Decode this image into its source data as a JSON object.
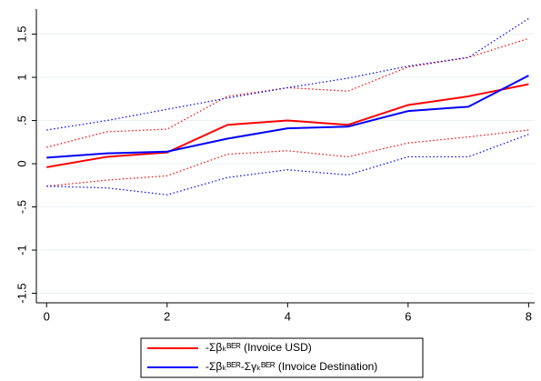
{
  "chart_data": {
    "type": "line",
    "x": [
      0,
      1,
      2,
      3,
      4,
      5,
      6,
      7,
      8
    ],
    "series": [
      {
        "name": "-Σβₖᴮᴱᴿ (Invoice USD)",
        "color": "#ff0000",
        "values": [
          -0.04,
          0.08,
          0.13,
          0.45,
          0.5,
          0.45,
          0.68,
          0.78,
          0.92
        ],
        "upper": [
          0.19,
          0.37,
          0.4,
          0.78,
          0.88,
          0.84,
          1.12,
          1.23,
          1.45
        ],
        "lower": [
          -0.26,
          -0.19,
          -0.14,
          0.11,
          0.15,
          0.08,
          0.24,
          0.31,
          0.39
        ]
      },
      {
        "name": "-Σβₖᴮᴱᴿ-Σγₖᴮᴱᴿ (Invoice Destination)",
        "color": "#0000ff",
        "values": [
          0.07,
          0.12,
          0.14,
          0.29,
          0.41,
          0.43,
          0.61,
          0.66,
          1.02
        ],
        "upper": [
          0.39,
          0.5,
          0.63,
          0.76,
          0.88,
          0.99,
          1.13,
          1.23,
          1.68
        ],
        "lower": [
          -0.26,
          -0.28,
          -0.36,
          -0.16,
          -0.07,
          -0.13,
          0.08,
          0.08,
          0.34
        ]
      }
    ],
    "xlim": [
      -0.17,
      8.1
    ],
    "xticks": [
      0,
      2,
      4,
      6,
      8
    ],
    "ylim": [
      -1.61,
      1.79
    ],
    "yticks": [
      {
        "value": -1.5,
        "label": "-1.5"
      },
      -1,
      {
        "value": -0.5,
        "label": "-.5"
      },
      0,
      {
        "value": 0.5,
        "label": ".5"
      },
      1,
      1.5
    ],
    "grid": true
  }
}
